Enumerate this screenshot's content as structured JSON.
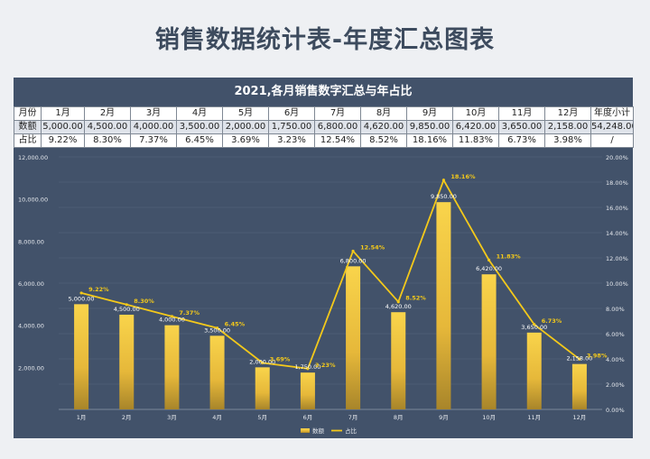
{
  "page": {
    "title": "销售数据统计表-年度汇总图表"
  },
  "card": {
    "title": "2021,各月销售数字汇总与年占比"
  },
  "table": {
    "header": [
      "月份",
      "1月",
      "2月",
      "3月",
      "4月",
      "5月",
      "6月",
      "7月",
      "8月",
      "9月",
      "10月",
      "11月",
      "12月",
      "年度小计"
    ],
    "values_row": [
      "数额",
      "5,000.00",
      "4,500.00",
      "4,000.00",
      "3,500.00",
      "2,000.00",
      "1,750.00",
      "6,800.00",
      "4,620.00",
      "9,850.00",
      "6,420.00",
      "3,650.00",
      "2,158.00",
      "54,248.00"
    ],
    "percent_row": [
      "占比",
      "9.22%",
      "8.30%",
      "7.37%",
      "6.45%",
      "3.69%",
      "3.23%",
      "12.54%",
      "8.52%",
      "18.16%",
      "11.83%",
      "6.73%",
      "3.98%",
      "/"
    ]
  },
  "chart_data": {
    "type": "bar",
    "categories": [
      "1月",
      "2月",
      "3月",
      "4月",
      "5月",
      "6月",
      "7月",
      "8月",
      "9月",
      "10月",
      "11月",
      "12月"
    ],
    "series": [
      {
        "name": "数额",
        "type": "bar",
        "axis": "left",
        "values": [
          5000,
          4500,
          4000,
          3500,
          2000,
          1750,
          6800,
          4620,
          9850,
          6420,
          3650,
          2158
        ]
      },
      {
        "name": "占比",
        "type": "line",
        "axis": "right",
        "values": [
          9.22,
          8.3,
          7.37,
          6.45,
          3.69,
          3.23,
          12.54,
          8.52,
          18.16,
          11.83,
          6.73,
          3.98
        ]
      }
    ],
    "bar_labels": [
      "5,000.00",
      "4,500.00",
      "4,000.00",
      "3,500.00",
      "2,000.00",
      "1,750.00",
      "6,800.00",
      "4,620.00",
      "9,850.00",
      "6,420.00",
      "3,650.00",
      "2,158.00"
    ],
    "line_labels": [
      "9.22%",
      "8.30%",
      "7.37%",
      "6.45%",
      "3.69%",
      "3.23%",
      "12.54%",
      "8.52%",
      "18.16%",
      "11.83%",
      "6.73%",
      "3.98%"
    ],
    "y_left": {
      "ticks": [
        0,
        2000,
        4000,
        6000,
        8000,
        10000,
        12000
      ],
      "tick_labels": [
        "",
        "2,000.00",
        "4,000.00",
        "6,000.00",
        "8,000.00",
        "10,000.00",
        "12,000.00"
      ],
      "ylim": [
        0,
        12000
      ]
    },
    "y_right": {
      "ticks": [
        0,
        2,
        4,
        6,
        8,
        10,
        12,
        14,
        16,
        18,
        20
      ],
      "tick_labels": [
        "0.00%",
        "2.00%",
        "4.00%",
        "6.00%",
        "8.00%",
        "10.00%",
        "12.00%",
        "14.00%",
        "16.00%",
        "18.00%",
        "20.00%"
      ],
      "ylim": [
        0,
        20
      ]
    },
    "legend": {
      "position": "bottom",
      "items": [
        "数额",
        "占比"
      ]
    },
    "grid": true,
    "colors": {
      "bar_top": "#f9d44b",
      "bar_bottom": "#a8852a",
      "line": "#f4c91a",
      "label": "#ffffff",
      "line_label": "#f4c91a"
    }
  }
}
